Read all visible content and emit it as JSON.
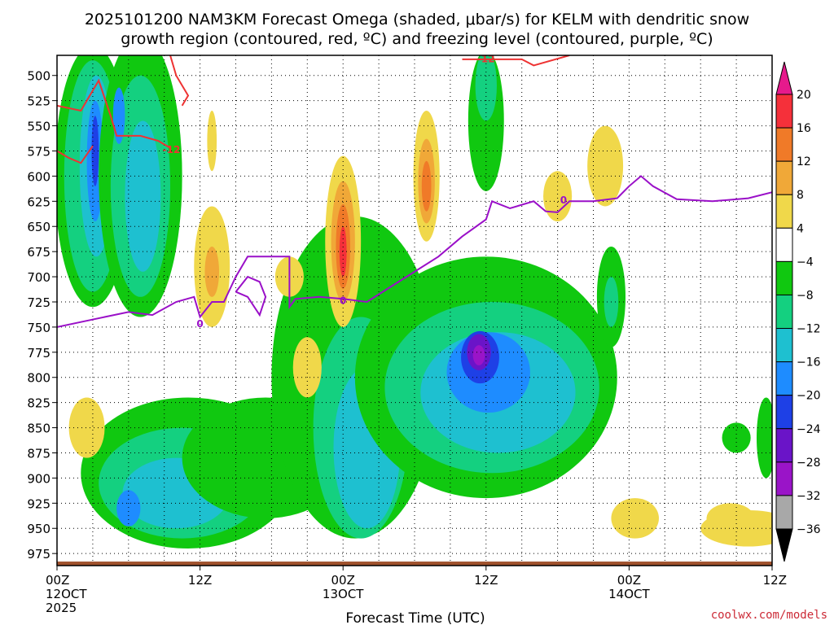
{
  "chart_data": {
    "type": "heatmap",
    "title_line1": "2025101200 NAM3KM Forecast Omega (shaded, μbar/s) for KELM with dendritic snow",
    "title_line2": "growth region (contoured, red, ºC) and freezing level (contoured, purple, ºC)",
    "xlabel": "Forecast Time (UTC)",
    "x_range_hours": [
      0,
      60
    ],
    "x_ticks": [
      {
        "hour": 0,
        "label": "00Z",
        "date": "12OCT",
        "year": "2025"
      },
      {
        "hour": 12,
        "label": "12Z",
        "date": "",
        "year": ""
      },
      {
        "hour": 24,
        "label": "00Z",
        "date": "13OCT",
        "year": ""
      },
      {
        "hour": 36,
        "label": "12Z",
        "date": "",
        "year": ""
      },
      {
        "hour": 48,
        "label": "00Z",
        "date": "14OCT",
        "year": ""
      },
      {
        "hour": 60,
        "label": "12Z",
        "date": "",
        "year": ""
      }
    ],
    "y_range_mb": [
      480,
      987
    ],
    "y_ticks": [
      500,
      525,
      550,
      575,
      600,
      625,
      650,
      675,
      700,
      725,
      750,
      775,
      800,
      825,
      850,
      875,
      900,
      925,
      950,
      975
    ],
    "colorbar": {
      "labels": [
        "20",
        "16",
        "12",
        "8",
        "4",
        "−4",
        "−8",
        "−12",
        "−16",
        "−20",
        "−24",
        "−28",
        "−32",
        "−36"
      ],
      "colors": [
        "#e61a8c",
        "#f5303a",
        "#f07a28",
        "#f0a838",
        "#f0d84a",
        "#ffffff",
        "#10c810",
        "#14d080",
        "#1ec0d0",
        "#1e8cff",
        "#1e40e6",
        "#6a14c8",
        "#9a14c8",
        "#a8a8a8",
        "#000000"
      ]
    },
    "contour_labels": {
      "dendritic": "-12",
      "freezing": "0"
    },
    "shaded_regions": [
      {
        "level": -4,
        "color": "#10c810",
        "hour": 3,
        "mb": 600,
        "dh": 3.2,
        "dmb": 130
      },
      {
        "level": -8,
        "color": "#14d080",
        "hour": 3,
        "mb": 600,
        "dh": 2.4,
        "dmb": 115
      },
      {
        "level": -12,
        "color": "#1ec0d0",
        "hour": 3.3,
        "mb": 590,
        "dh": 1.4,
        "dmb": 90
      },
      {
        "level": -16,
        "color": "#1e8cff",
        "hour": 3.2,
        "mb": 585,
        "dh": 0.7,
        "dmb": 60
      },
      {
        "level": -20,
        "color": "#1e40e6",
        "hour": 3.2,
        "mb": 575,
        "dh": 0.3,
        "dmb": 35
      },
      {
        "level": -4,
        "color": "#10c810",
        "hour": 7,
        "mb": 600,
        "dh": 3.5,
        "dmb": 140
      },
      {
        "level": -8,
        "color": "#14d080",
        "hour": 7,
        "mb": 610,
        "dh": 2.5,
        "dmb": 110
      },
      {
        "level": -12,
        "color": "#1ec0d0",
        "hour": 7.2,
        "mb": 620,
        "dh": 1.5,
        "dmb": 75
      },
      {
        "level": -16,
        "color": "#1e8cff",
        "hour": 5.2,
        "mb": 540,
        "dh": 0.5,
        "dmb": 28
      },
      {
        "level": -4,
        "color": "#10c810",
        "hour": 11,
        "mb": 895,
        "dh": 9,
        "dmb": 75
      },
      {
        "level": -8,
        "color": "#14d080",
        "hour": 10.5,
        "mb": 905,
        "dh": 7,
        "dmb": 55
      },
      {
        "level": -12,
        "color": "#1ec0d0",
        "hour": 10,
        "mb": 915,
        "dh": 4.5,
        "dmb": 35
      },
      {
        "level": -16,
        "color": "#1e8cff",
        "hour": 6,
        "mb": 930,
        "dh": 1,
        "dmb": 18
      },
      {
        "level": -4,
        "color": "#10c810",
        "hour": 17.5,
        "mb": 880,
        "dh": 7,
        "dmb": 60
      },
      {
        "level": -4,
        "color": "#10c810",
        "hour": 25,
        "mb": 800,
        "dh": 7,
        "dmb": 160
      },
      {
        "level": -8,
        "color": "#14d080",
        "hour": 25.5,
        "mb": 850,
        "dh": 4,
        "dmb": 110
      },
      {
        "level": -12,
        "color": "#1ec0d0",
        "hour": 26,
        "mb": 870,
        "dh": 2.8,
        "dmb": 80
      },
      {
        "level": -16,
        "color": "#1e8cff",
        "hour": 27,
        "mb": 815,
        "dh": 0.4,
        "dmb": 30
      },
      {
        "level": -4,
        "color": "#10c810",
        "hour": 36,
        "mb": 800,
        "dh": 11,
        "dmb": 120
      },
      {
        "level": -8,
        "color": "#14d080",
        "hour": 36.5,
        "mb": 810,
        "dh": 9,
        "dmb": 85
      },
      {
        "level": -12,
        "color": "#1ec0d0",
        "hour": 37,
        "mb": 815,
        "dh": 6.5,
        "dmb": 60
      },
      {
        "level": -16,
        "color": "#1e8cff",
        "hour": 36.2,
        "mb": 795,
        "dh": 3.5,
        "dmb": 40
      },
      {
        "level": -20,
        "color": "#1e40e6",
        "hour": 35.5,
        "mb": 780,
        "dh": 1.6,
        "dmb": 26
      },
      {
        "level": -28,
        "color": "#6a14c8",
        "hour": 35.4,
        "mb": 775,
        "dh": 1,
        "dmb": 18
      },
      {
        "level": -32,
        "color": "#9a14c8",
        "hour": 35.4,
        "mb": 778,
        "dh": 0.5,
        "dmb": 10
      },
      {
        "level": -4,
        "color": "#10c810",
        "hour": 36,
        "mb": 545,
        "dh": 1.5,
        "dmb": 70
      },
      {
        "level": -8,
        "color": "#14d080",
        "hour": 36,
        "mb": 510,
        "dh": 0.9,
        "dmb": 35
      },
      {
        "level": -4,
        "color": "#10c810",
        "hour": 46.5,
        "mb": 720,
        "dh": 1.2,
        "dmb": 50
      },
      {
        "level": -8,
        "color": "#14d080",
        "hour": 46.5,
        "mb": 725,
        "dh": 0.6,
        "dmb": 25
      },
      {
        "level": -4,
        "color": "#10c810",
        "hour": 57,
        "mb": 860,
        "dh": 1.2,
        "dmb": 15
      },
      {
        "level": -4,
        "color": "#10c810",
        "hour": 59.5,
        "mb": 860,
        "dh": 0.8,
        "dmb": 40
      },
      {
        "level": 4,
        "color": "#f0d84a",
        "hour": 24,
        "mb": 665,
        "dh": 1.5,
        "dmb": 85
      },
      {
        "level": 8,
        "color": "#f0a838",
        "hour": 24,
        "mb": 665,
        "dh": 1,
        "dmb": 60
      },
      {
        "level": 12,
        "color": "#f07a28",
        "hour": 24,
        "mb": 670,
        "dh": 0.6,
        "dmb": 42
      },
      {
        "level": 16,
        "color": "#f5303a",
        "hour": 24,
        "mb": 675,
        "dh": 0.3,
        "dmb": 25
      },
      {
        "level": 4,
        "color": "#f0d84a",
        "hour": 31,
        "mb": 600,
        "dh": 1.1,
        "dmb": 65
      },
      {
        "level": 8,
        "color": "#f0a838",
        "hour": 31,
        "mb": 605,
        "dh": 0.7,
        "dmb": 42
      },
      {
        "level": 12,
        "color": "#f07a28",
        "hour": 31,
        "mb": 610,
        "dh": 0.4,
        "dmb": 25
      },
      {
        "level": 4,
        "color": "#f0d84a",
        "hour": 13,
        "mb": 690,
        "dh": 1.5,
        "dmb": 60
      },
      {
        "level": 8,
        "color": "#f0a838",
        "hour": 13,
        "mb": 695,
        "dh": 0.6,
        "dmb": 25
      },
      {
        "level": 4,
        "color": "#f0d84a",
        "hour": 48.5,
        "mb": 940,
        "dh": 2,
        "dmb": 20
      },
      {
        "level": 4,
        "color": "#f0d84a",
        "hour": 58,
        "mb": 950,
        "dh": 4,
        "dmb": 18
      },
      {
        "level": 4,
        "color": "#f0d84a",
        "hour": 46,
        "mb": 590,
        "dh": 1.5,
        "dmb": 40
      },
      {
        "level": 4,
        "color": "#f0d84a",
        "hour": 2.5,
        "mb": 850,
        "dh": 1.5,
        "dmb": 30
      },
      {
        "level": 4,
        "color": "#f0d84a",
        "hour": 19.5,
        "mb": 700,
        "dh": 1.2,
        "dmb": 20
      },
      {
        "level": 4,
        "color": "#f0d84a",
        "hour": 13,
        "mb": 565,
        "dh": 0.4,
        "dmb": 30
      },
      {
        "level": 4,
        "color": "#f0d84a",
        "hour": 42,
        "mb": 620,
        "dh": 1.2,
        "dmb": 25
      },
      {
        "level": 4,
        "color": "#f0d84a",
        "hour": 56.5,
        "mb": 940,
        "dh": 2,
        "dmb": 15
      },
      {
        "level": 4,
        "color": "#f0d84a",
        "hour": 21,
        "mb": 790,
        "dh": 1.2,
        "dmb": 30
      }
    ],
    "dendritic_contour": [
      {
        "hour": 0,
        "mb": 530
      },
      {
        "hour": 2,
        "mb": 535
      },
      {
        "hour": 3.5,
        "mb": 505
      },
      {
        "hour": 4.5,
        "mb": 540
      },
      {
        "hour": 5,
        "mb": 560
      },
      {
        "hour": 7,
        "mb": 560
      },
      {
        "hour": 8.5,
        "mb": 565
      },
      {
        "hour": 9.5,
        "mb": 572
      }
    ],
    "dendritic_contour_2": [
      {
        "hour": 0,
        "mb": 575
      },
      {
        "hour": 1,
        "mb": 582
      },
      {
        "hour": 2,
        "mb": 587
      },
      {
        "hour": 3,
        "mb": 570
      }
    ],
    "dendritic_contour_3": [
      {
        "hour": 9.5,
        "mb": 480
      },
      {
        "hour": 10,
        "mb": 500
      },
      {
        "hour": 11,
        "mb": 520
      },
      {
        "hour": 10.5,
        "mb": 530
      }
    ],
    "dendritic_contour_4": [
      {
        "hour": 34,
        "mb": 484
      },
      {
        "hour": 39,
        "mb": 484
      },
      {
        "hour": 40,
        "mb": 490
      },
      {
        "hour": 43,
        "mb": 480
      }
    ],
    "freezing_contour": [
      {
        "hour": 0,
        "mb": 750
      },
      {
        "hour": 2,
        "mb": 745
      },
      {
        "hour": 4,
        "mb": 740
      },
      {
        "hour": 6,
        "mb": 735
      },
      {
        "hour": 8,
        "mb": 738
      },
      {
        "hour": 10,
        "mb": 725
      },
      {
        "hour": 11.5,
        "mb": 720
      },
      {
        "hour": 12,
        "mb": 740
      },
      {
        "hour": 13,
        "mb": 725
      },
      {
        "hour": 14,
        "mb": 725
      },
      {
        "hour": 15,
        "mb": 700
      },
      {
        "hour": 16,
        "mb": 680
      },
      {
        "hour": 18,
        "mb": 680
      },
      {
        "hour": 19.5,
        "mb": 680
      },
      {
        "hour": 19.5,
        "mb": 730
      },
      {
        "hour": 20,
        "mb": 722
      },
      {
        "hour": 22,
        "mb": 720
      },
      {
        "hour": 24,
        "mb": 722
      },
      {
        "hour": 26,
        "mb": 725
      },
      {
        "hour": 28,
        "mb": 710
      },
      {
        "hour": 30,
        "mb": 695
      },
      {
        "hour": 32,
        "mb": 680
      },
      {
        "hour": 34,
        "mb": 660
      },
      {
        "hour": 36,
        "mb": 643
      },
      {
        "hour": 36.5,
        "mb": 625
      },
      {
        "hour": 38,
        "mb": 632
      },
      {
        "hour": 40,
        "mb": 625
      },
      {
        "hour": 41,
        "mb": 635
      },
      {
        "hour": 42,
        "mb": 636
      },
      {
        "hour": 43,
        "mb": 625
      },
      {
        "hour": 45,
        "mb": 625
      },
      {
        "hour": 47,
        "mb": 622
      },
      {
        "hour": 48,
        "mb": 610
      },
      {
        "hour": 49,
        "mb": 600
      },
      {
        "hour": 50,
        "mb": 610
      },
      {
        "hour": 52,
        "mb": 623
      },
      {
        "hour": 55,
        "mb": 625
      },
      {
        "hour": 58,
        "mb": 622
      },
      {
        "hour": 60,
        "mb": 616
      }
    ],
    "freezing_loop": [
      {
        "hour": 15,
        "mb": 715
      },
      {
        "hour": 16,
        "mb": 700
      },
      {
        "hour": 17,
        "mb": 705
      },
      {
        "hour": 17.5,
        "mb": 720
      },
      {
        "hour": 17,
        "mb": 738
      },
      {
        "hour": 16,
        "mb": 720
      },
      {
        "hour": 15,
        "mb": 715
      }
    ],
    "ground_mb": 983,
    "credit": "coolwx.com/models"
  }
}
